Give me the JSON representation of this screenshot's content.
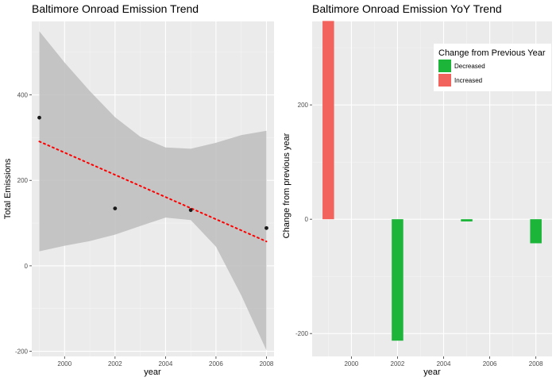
{
  "chart_data": [
    {
      "type": "scatter",
      "title": "Baltimore Onroad Emission Trend",
      "xlabel": "year",
      "ylabel": "Total Emissions",
      "xlim": [
        1998.7,
        2008.3
      ],
      "ylim": [
        -212,
        572
      ],
      "xticks": [
        2000,
        2002,
        2004,
        2006,
        2008
      ],
      "yticks": [
        -200,
        0,
        200,
        400
      ],
      "points": {
        "x": [
          1999,
          2002,
          2005,
          2008
        ],
        "y": [
          346.8,
          134.3,
          130.4,
          88.3
        ]
      },
      "trend": {
        "x": [
          1999,
          2008
        ],
        "y": [
          291,
          57
        ],
        "color": "#ff0000",
        "style": "dotted"
      },
      "confidence_band": {
        "x": [
          1999,
          2000,
          2001,
          2002,
          2003,
          2004,
          2005,
          2006,
          2007,
          2008
        ],
        "upper": [
          549,
          476,
          409,
          348,
          302,
          277,
          274,
          288,
          306,
          316
        ],
        "lower": [
          34,
          47,
          58,
          73,
          93,
          113,
          107,
          45,
          -69,
          -198
        ],
        "color": "#bdbdbd"
      },
      "grid": true
    },
    {
      "type": "bar",
      "title": "Baltimore Onroad Emission YoY Trend",
      "xlabel": "year",
      "ylabel": "Change from previous year",
      "xlim": [
        1998.3,
        2008.7
      ],
      "ylim": [
        -240,
        346
      ],
      "xticks": [
        2000,
        2002,
        2004,
        2006,
        2008
      ],
      "yticks": [
        -200,
        0,
        200
      ],
      "x": [
        1999,
        2002,
        2005,
        2008
      ],
      "values": [
        346.8,
        -212.5,
        -3.9,
        -42.1
      ],
      "bar_width_years": 0.5,
      "legend": {
        "title": "Change from Previous Year",
        "placement": "top-right",
        "entries": [
          {
            "label": "Decreased",
            "color": "#1cb53a"
          },
          {
            "label": "Increased",
            "color": "#f2635d"
          }
        ]
      },
      "grid": true
    }
  ]
}
